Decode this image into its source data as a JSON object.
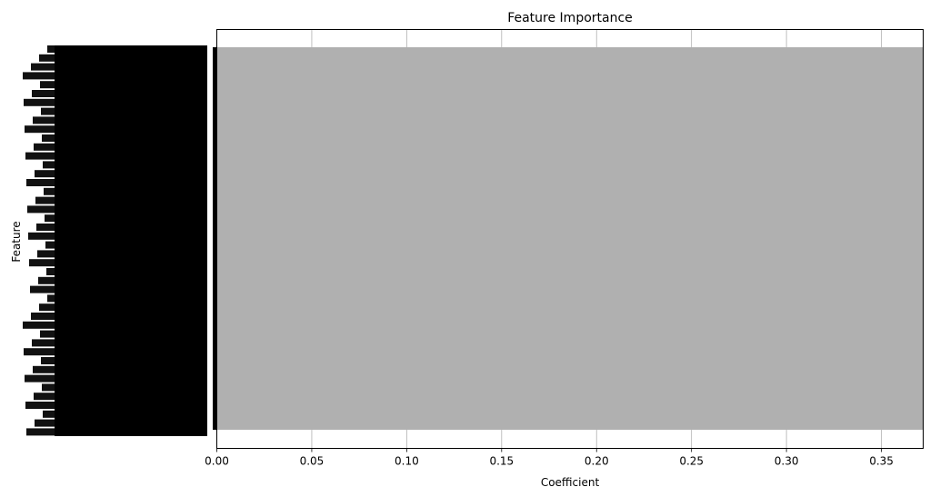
{
  "chart_data": {
    "type": "bar",
    "orientation": "horizontal",
    "title": "Feature Importance",
    "xlabel": "Coefficient",
    "ylabel": "Feature",
    "xlim": [
      0,
      0.372
    ],
    "x_ticks": [
      0.0,
      0.05,
      0.1,
      0.15,
      0.2,
      0.25,
      0.3,
      0.35
    ],
    "x_tick_labels": [
      "0.00",
      "0.05",
      "0.10",
      "0.15",
      "0.20",
      "0.25",
      "0.30",
      "0.35"
    ],
    "grid": "vertical",
    "bar_color": "#b0b0b0",
    "categories_note_visible": "y-axis tick labels are an illegible overlapping mass of text",
    "bars": [
      {
        "value": 0.372,
        "label": ""
      }
    ]
  }
}
